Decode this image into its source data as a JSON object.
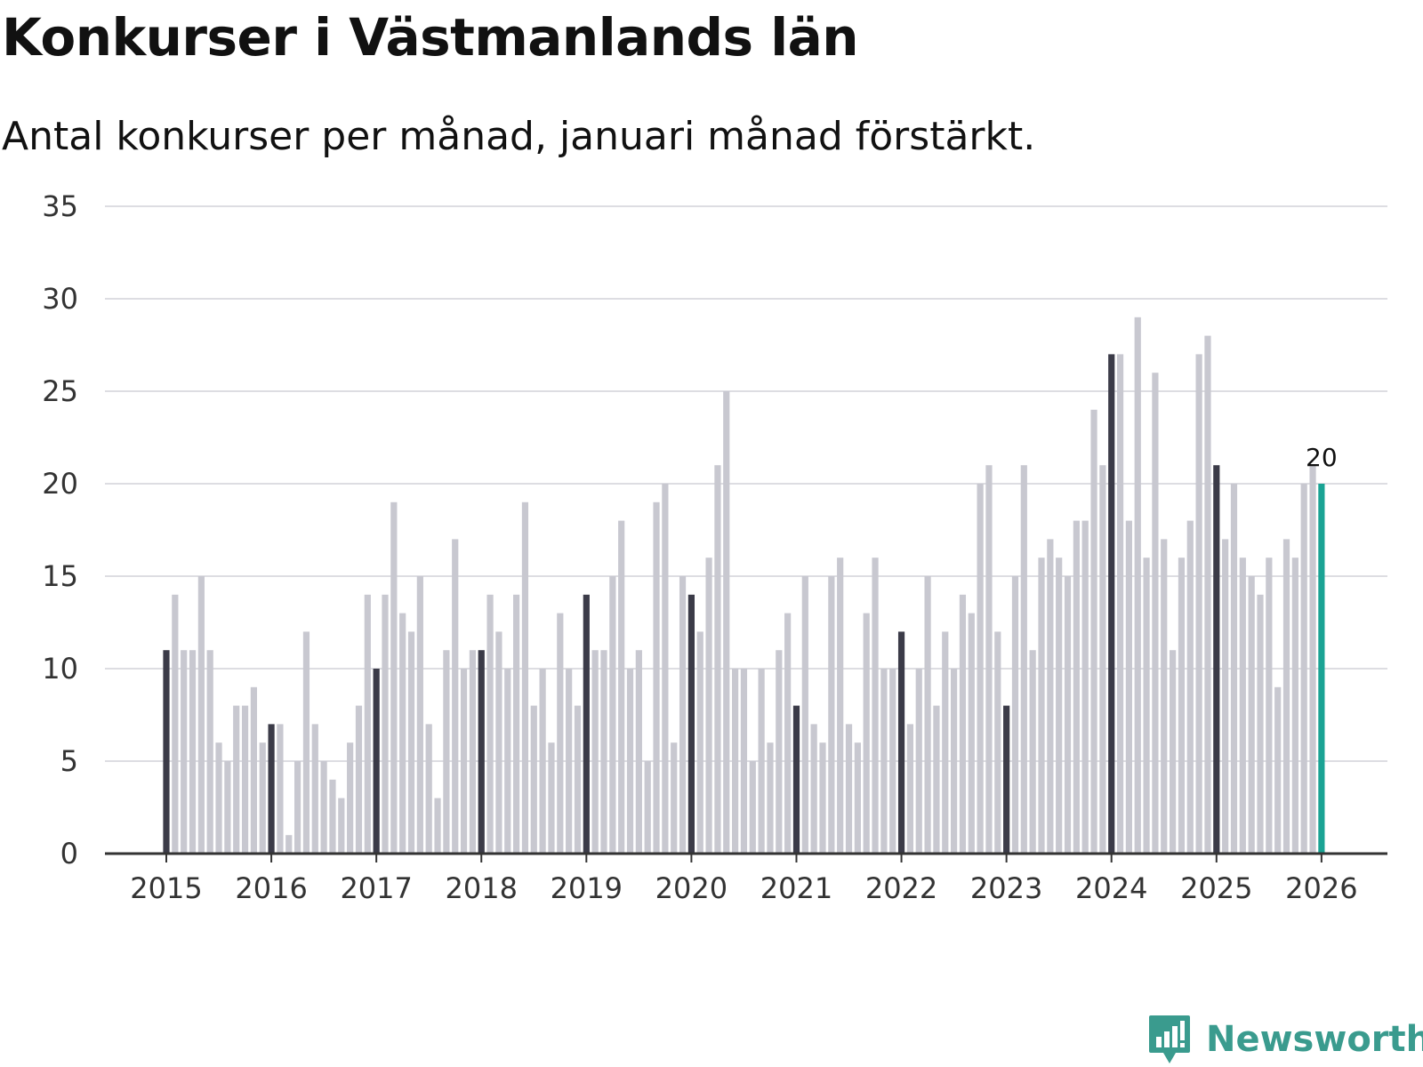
{
  "title": "Konkurser i Västmanlands län",
  "subtitle": "Antal konkurser per månad, januari månad förstärkt.",
  "brand": {
    "name": "Newsworthy",
    "icon": "newsworthy-logo-icon"
  },
  "colors": {
    "january": "#3b3b48",
    "month": "#c8c8d0",
    "latest": "#1aa394",
    "grid": "#dddde2",
    "axis": "#333333"
  },
  "chart_data": {
    "type": "bar",
    "title": "Konkurser i Västmanlands län",
    "subtitle": "Antal konkurser per månad, januari månad förstärkt.",
    "xlabel": "",
    "ylabel": "",
    "ylim": [
      0,
      35
    ],
    "yticks": [
      0,
      5,
      10,
      15,
      20,
      25,
      30,
      35
    ],
    "xticks": [
      "2015",
      "2016",
      "2017",
      "2018",
      "2019",
      "2020",
      "2021",
      "2022",
      "2023",
      "2024",
      "2025",
      "2026"
    ],
    "start": "2015-01",
    "grid": true,
    "highlight_label": "20",
    "values": [
      11,
      14,
      11,
      11,
      15,
      11,
      6,
      5,
      8,
      8,
      9,
      6,
      7,
      7,
      1,
      5,
      12,
      7,
      5,
      4,
      3,
      6,
      8,
      14,
      10,
      14,
      19,
      13,
      12,
      15,
      7,
      3,
      11,
      17,
      10,
      11,
      11,
      14,
      12,
      10,
      14,
      19,
      8,
      10,
      6,
      13,
      10,
      8,
      14,
      11,
      11,
      15,
      18,
      10,
      11,
      5,
      19,
      20,
      6,
      15,
      14,
      12,
      16,
      21,
      25,
      10,
      10,
      5,
      10,
      6,
      11,
      13,
      8,
      15,
      7,
      6,
      15,
      16,
      7,
      6,
      13,
      16,
      10,
      10,
      12,
      7,
      10,
      15,
      8,
      12,
      10,
      14,
      13,
      20,
      21,
      12,
      8,
      15,
      21,
      11,
      16,
      17,
      16,
      15,
      18,
      18,
      24,
      21,
      27,
      27,
      18,
      29,
      16,
      26,
      17,
      11,
      16,
      18,
      27,
      28,
      21,
      17,
      20,
      16,
      15,
      14,
      16,
      9,
      17,
      16,
      20,
      21,
      20
    ]
  }
}
